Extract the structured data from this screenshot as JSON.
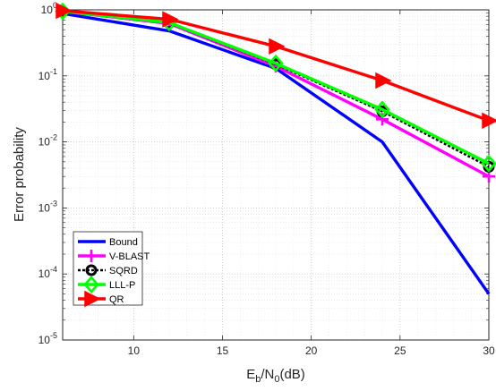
{
  "chart_data": {
    "type": "line",
    "xlabel": "E_b/N_0(dB)",
    "ylabel": "Error probability",
    "x_scale": "linear",
    "y_scale": "log",
    "xlim": [
      6,
      30
    ],
    "ylim": [
      1e-05,
      1
    ],
    "x_ticks": [
      10,
      15,
      20,
      25,
      30
    ],
    "y_ticks": [
      1e-05,
      0.0001,
      0.001,
      0.01,
      0.1,
      1
    ],
    "y_tick_labels": [
      {
        "base": "10",
        "exp": "-5"
      },
      {
        "base": "10",
        "exp": "-4"
      },
      {
        "base": "10",
        "exp": "-3"
      },
      {
        "base": "10",
        "exp": "-2"
      },
      {
        "base": "10",
        "exp": "-1"
      },
      {
        "base": "10",
        "exp": "0"
      }
    ],
    "grid": true,
    "minor_grid": true,
    "legend_position": "bottom-left",
    "x": [
      6,
      12,
      18,
      24,
      30
    ],
    "series": [
      {
        "name": "Bound",
        "color": "#0000ff",
        "marker": "none",
        "values": [
          0.88,
          0.48,
          0.13,
          0.01,
          5e-05
        ]
      },
      {
        "name": "V-BLAST",
        "color": "#ff00ff",
        "marker": "plus",
        "values": [
          0.95,
          0.62,
          0.14,
          0.022,
          0.003
        ]
      },
      {
        "name": "SQRD",
        "color": "#000000",
        "marker": "circle",
        "dashed": true,
        "values": [
          0.95,
          0.63,
          0.15,
          0.029,
          0.0042
        ]
      },
      {
        "name": "LLL-P",
        "color": "#00ff00",
        "marker": "diamond",
        "values": [
          0.95,
          0.64,
          0.155,
          0.031,
          0.0047
        ]
      },
      {
        "name": "QR",
        "color": "#ff0000",
        "marker": "triangle-right",
        "values": [
          0.97,
          0.72,
          0.28,
          0.085,
          0.021
        ]
      }
    ]
  }
}
